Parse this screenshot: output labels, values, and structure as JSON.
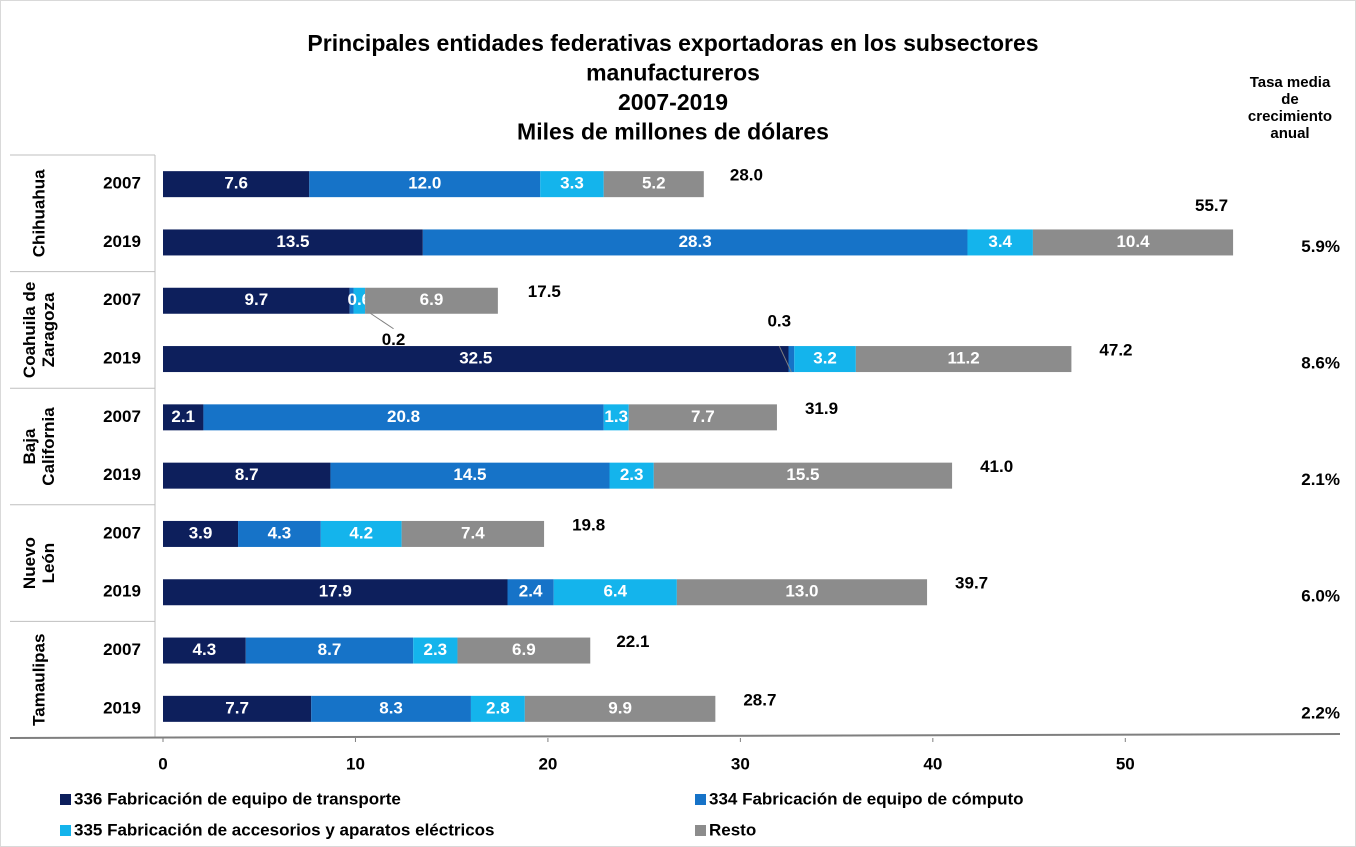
{
  "chart_data": {
    "type": "stacked-bar-horizontal",
    "title": [
      "Principales entidades federativas exportadoras en los subsectores",
      "manufactureros",
      "2007-2019",
      "Miles de millones de dólares"
    ],
    "growth_header": [
      "Tasa media",
      "de",
      "crecimiento",
      "anual"
    ],
    "groups": [
      [
        "Chihuahua"
      ],
      [
        "Coahuila de",
        "Zaragoza"
      ],
      [
        "Baja",
        "California"
      ],
      [
        "Nuevo",
        "León"
      ],
      [
        "Tamaulipas"
      ]
    ],
    "categories": [
      "2007",
      "2019",
      "2007",
      "2019",
      "2007",
      "2019",
      "2007",
      "2019",
      "2007",
      "2019"
    ],
    "series": [
      {
        "name": "336 Fabricación de equipo de transporte",
        "color": "#0d1f5c",
        "values": [
          7.6,
          13.5,
          9.7,
          32.5,
          2.1,
          8.7,
          3.9,
          17.9,
          4.3,
          7.7
        ],
        "value_labels": [
          "7.6",
          "13.5",
          "9.7",
          "32.5",
          "2.1",
          "8.7",
          "3.9",
          "17.9",
          "4.3",
          "7.7"
        ]
      },
      {
        "name": "334 Fabricación de equipo de cómputo",
        "color": "#1673c8",
        "values": [
          12.0,
          28.3,
          0.2,
          0.3,
          20.8,
          14.5,
          4.3,
          2.4,
          8.7,
          8.3
        ],
        "value_labels": [
          "12.0",
          "28.3",
          "0.2",
          "0.3",
          "20.8",
          "14.5",
          "4.3",
          "2.4",
          "8.7",
          "8.3"
        ]
      },
      {
        "name": "335 Fabricación de accesorios y aparatos eléctricos",
        "color": "#14b4ec",
        "values": [
          3.3,
          3.4,
          0.6,
          3.2,
          1.3,
          2.3,
          4.2,
          6.4,
          2.3,
          2.8
        ],
        "value_labels": [
          "3.3",
          "3.4",
          "0.6",
          "3.2",
          "1.3",
          "2.3",
          "4.2",
          "6.4",
          "2.3",
          "2.8"
        ]
      },
      {
        "name": "Resto",
        "color": "#8c8c8c",
        "values": [
          5.2,
          10.4,
          6.9,
          11.2,
          7.7,
          15.5,
          7.4,
          13.0,
          6.9,
          9.9
        ],
        "value_labels": [
          "5.2",
          "10.4",
          "6.9",
          "11.2",
          "7.7",
          "15.5",
          "7.4",
          "13.0",
          "6.9",
          "9.9"
        ]
      }
    ],
    "totals": [
      28.0,
      55.7,
      17.5,
      47.2,
      31.9,
      41.0,
      19.8,
      39.7,
      22.1,
      28.7
    ],
    "totals_labels": [
      "28.0",
      "55.7",
      "17.5",
      "47.2",
      "31.9",
      "41.0",
      "19.8",
      "39.7",
      "22.1",
      "28.7"
    ],
    "growth": [
      5.9,
      8.6,
      2.1,
      6.0,
      2.2
    ],
    "growth_labels": [
      "5.9%",
      "8.6%",
      "2.1%",
      "6.0%",
      "2.2%"
    ],
    "xlim": [
      0,
      61
    ],
    "xticks": [
      0,
      10,
      20,
      30,
      40,
      50
    ]
  }
}
